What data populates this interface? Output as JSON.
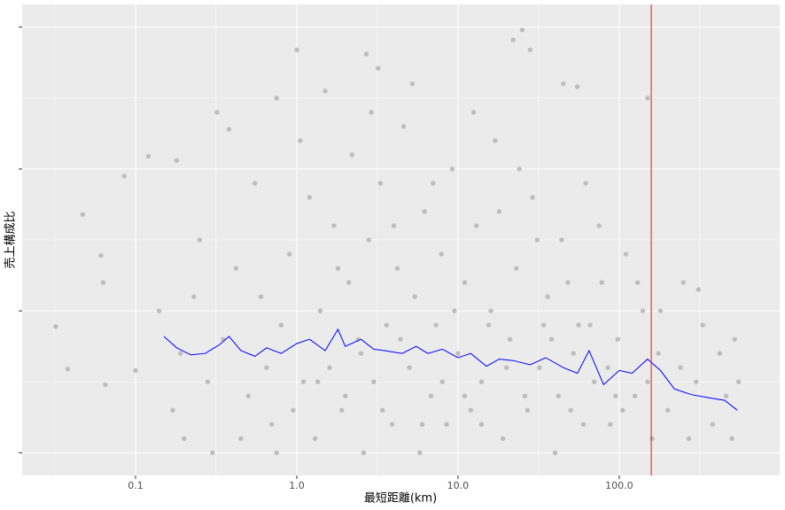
{
  "chart_data": {
    "type": "scatter",
    "xlabel": "最短距離(km)",
    "ylabel": "売上構成比",
    "xlog": true,
    "grid": true,
    "xlim": [
      0.0198,
      989
    ],
    "ylim": [
      -0.16,
      3.16
    ],
    "xticks": [
      {
        "value": 0.1,
        "label": "0.1"
      },
      {
        "value": 1,
        "label": "1.0"
      },
      {
        "value": 10,
        "label": "10.0"
      },
      {
        "value": 100,
        "label": "100.0"
      }
    ],
    "xminor_ticks": [
      0.0316,
      0.316,
      3.16,
      31.6,
      316
    ],
    "yticks": [
      0,
      1,
      2,
      3
    ],
    "yminor_ticks": [
      0.5,
      1.5,
      2.5
    ],
    "color": "#bdbdbd",
    "x": [
      0.032,
      0.047,
      0.038,
      0.085,
      0.12,
      0.18,
      0.38,
      1.0,
      1.5,
      2.7,
      3.2,
      22,
      25,
      28,
      45,
      55,
      0.32,
      0.75,
      150,
      250,
      310,
      0.061,
      0.063,
      0.065,
      0.1,
      0.14,
      0.17,
      0.2,
      0.25,
      0.3,
      0.5,
      0.6,
      0.7,
      0.8,
      0.9,
      1.1,
      1.2,
      1.3,
      1.4,
      1.6,
      1.7,
      1.9,
      2.1,
      2.2,
      2.4,
      2.6,
      2.8,
      3.0,
      3.3,
      3.6,
      3.9,
      4.2,
      4.6,
      5.0,
      5.4,
      5.8,
      6.2,
      6.8,
      7.3,
      7.9,
      8.5,
      9.2,
      10,
      11,
      12,
      13,
      14,
      16,
      17,
      19,
      21,
      23,
      26,
      29,
      32,
      36,
      40,
      44,
      50,
      56,
      62,
      70,
      78,
      88,
      98,
      110,
      125,
      140,
      160,
      175,
      200,
      240,
      270,
      300,
      330,
      380,
      420,
      460,
      500,
      520,
      550,
      0.35,
      0.42,
      0.28,
      0.23,
      0.19,
      0.55,
      0.75,
      1.05,
      1.8,
      2.9,
      4.0,
      5.2,
      7.0,
      9.5,
      12.5,
      15.5,
      18,
      24,
      31,
      38,
      48,
      60,
      75,
      95,
      130,
      180,
      0.45,
      0.65,
      0.95,
      1.35,
      2.0,
      2.5,
      3.4,
      4.4,
      6.0,
      8.0,
      11,
      14,
      20,
      27,
      34,
      42,
      52,
      66,
      85,
      105,
      150
    ],
    "values": [
      0.89,
      1.68,
      0.59,
      1.95,
      2.09,
      2.06,
      2.28,
      2.84,
      2.55,
      2.81,
      2.71,
      2.91,
      2.98,
      2.84,
      2.6,
      2.58,
      2.4,
      2.5,
      2.5,
      1.2,
      1.15,
      1.39,
      1.2,
      0.48,
      0.58,
      1.0,
      0.3,
      0.1,
      1.5,
      0.0,
      0.4,
      1.1,
      0.2,
      0.9,
      1.4,
      0.5,
      1.8,
      0.1,
      1.0,
      0.6,
      1.6,
      0.3,
      1.2,
      2.1,
      0.8,
      0.0,
      1.5,
      0.5,
      1.9,
      0.9,
      0.2,
      1.3,
      2.3,
      0.6,
      1.1,
      0.0,
      1.7,
      0.4,
      0.9,
      1.4,
      0.2,
      2.0,
      0.7,
      1.2,
      0.3,
      1.6,
      0.5,
      1.0,
      2.2,
      0.1,
      0.8,
      1.3,
      0.4,
      1.8,
      0.6,
      1.1,
      0.0,
      1.5,
      0.3,
      0.9,
      1.9,
      0.5,
      1.2,
      0.2,
      0.8,
      1.4,
      0.4,
      1.0,
      0.1,
      0.7,
      0.3,
      0.6,
      0.1,
      0.5,
      0.9,
      0.2,
      0.7,
      0.4,
      0.1,
      0.8,
      0.5,
      0.8,
      1.3,
      0.5,
      1.1,
      0.7,
      1.9,
      0.0,
      2.2,
      1.3,
      2.4,
      1.6,
      2.6,
      1.9,
      1.0,
      2.4,
      0.9,
      1.7,
      2.0,
      1.5,
      0.8,
      1.2,
      0.2,
      1.6,
      0.4,
      1.2,
      1.0,
      0.1,
      0.6,
      0.3,
      0.5,
      0.4,
      0.7,
      0.3,
      0.8,
      0.2,
      0.5,
      0.4,
      0.2,
      0.6,
      0.3,
      0.9,
      0.4,
      0.7,
      0.9,
      0.6,
      0.3,
      0.5
    ],
    "line": {
      "color": "#0000ff",
      "x": [
        0.15,
        0.18,
        0.22,
        0.27,
        0.33,
        0.38,
        0.45,
        0.55,
        0.65,
        0.8,
        1.0,
        1.2,
        1.5,
        1.8,
        2.0,
        2.5,
        3.0,
        3.5,
        4.5,
        5.5,
        6.5,
        8,
        10,
        12,
        15,
        18,
        22,
        28,
        35,
        45,
        55,
        65,
        80,
        100,
        120,
        150,
        180,
        220,
        280,
        350,
        450,
        540
      ],
      "values": [
        0.82,
        0.74,
        0.69,
        0.7,
        0.76,
        0.82,
        0.72,
        0.68,
        0.74,
        0.7,
        0.77,
        0.8,
        0.72,
        0.87,
        0.75,
        0.8,
        0.73,
        0.72,
        0.7,
        0.75,
        0.7,
        0.73,
        0.67,
        0.7,
        0.61,
        0.66,
        0.65,
        0.62,
        0.67,
        0.6,
        0.56,
        0.72,
        0.48,
        0.58,
        0.56,
        0.66,
        0.58,
        0.45,
        0.41,
        0.39,
        0.37,
        0.3
      ]
    },
    "vline": {
      "x": 158,
      "color": "#e41a1c"
    }
  }
}
